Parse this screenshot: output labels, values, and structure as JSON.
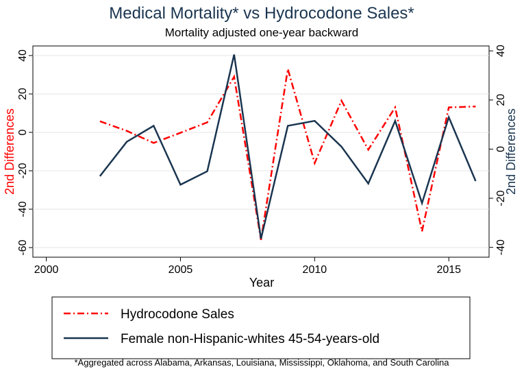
{
  "chart_data": {
    "type": "line",
    "title": "Medical Mortality* vs Hydrocodone Sales*",
    "subtitle": "Mortality adjusted one-year backward",
    "xlabel": "Year",
    "ylabel_left": "2nd Differences",
    "ylabel_right": "2nd Differences",
    "xlim": [
      1999.5,
      2016.5
    ],
    "x_ticks": [
      2000,
      2005,
      2010,
      2015
    ],
    "ylim_left": [
      -65,
      45
    ],
    "y_ticks_left": [
      40,
      20,
      0,
      -20,
      -40,
      -60
    ],
    "ylim_right": [
      -44,
      42
    ],
    "y_ticks_right": [
      40,
      20,
      0,
      -20,
      -40
    ],
    "grid": "horizontal (left axis)",
    "series": [
      {
        "name": "Hydrocodone Sales",
        "axis": "left",
        "color": "#ff0000",
        "style": "dash-dot",
        "x": [
          2002,
          2003,
          2004,
          2005,
          2006,
          2007,
          2008,
          2009,
          2010,
          2011,
          2012,
          2013,
          2014,
          2015,
          2016
        ],
        "values": [
          5.8,
          0.8,
          -5.5,
          -0.2,
          5.2,
          29.0,
          -56.0,
          33.0,
          -16.0,
          16.5,
          -9.0,
          13.0,
          -51.5,
          13.0,
          13.5
        ]
      },
      {
        "name": "Female non-Hispanic-whites 45-54-years-old",
        "axis": "right",
        "color": "#1a3550",
        "style": "solid",
        "x": [
          2002,
          2003,
          2004,
          2005,
          2006,
          2007,
          2008,
          2009,
          2010,
          2011,
          2012,
          2013,
          2014,
          2015,
          2016
        ],
        "values": [
          -11.0,
          3.0,
          9.5,
          -14.5,
          -9.0,
          38.5,
          -36.5,
          9.5,
          11.5,
          1.0,
          -14.0,
          11.5,
          -22.0,
          13.0,
          -13.0
        ]
      }
    ]
  },
  "footnote": "*Aggregated across Alabama, Arkansas, Louisiana, Mississippi, Oklahoma, and South Carolina"
}
